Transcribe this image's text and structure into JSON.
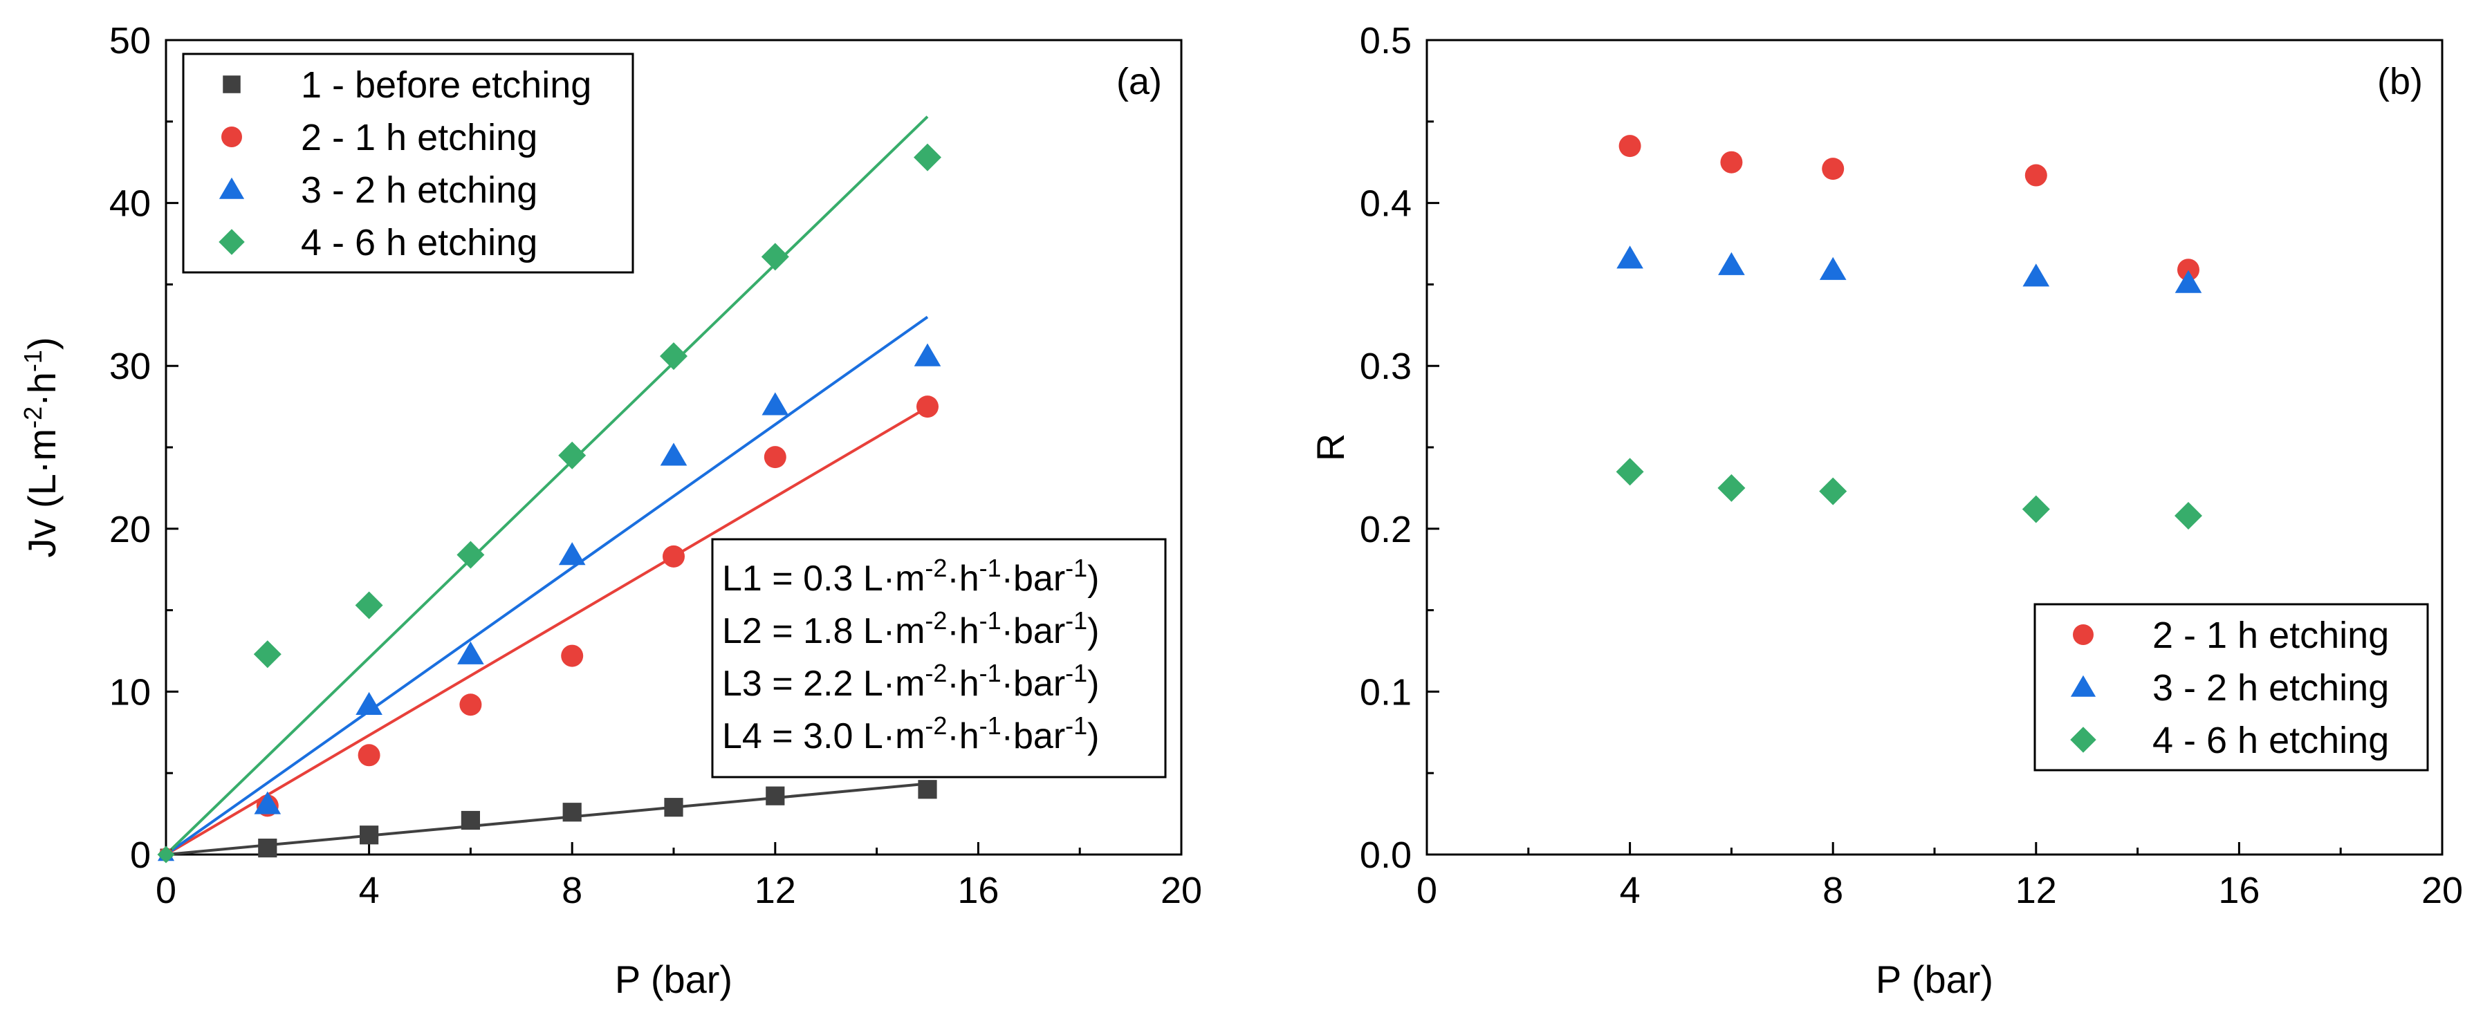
{
  "chart_data": [
    {
      "type": "scatter",
      "panel_label": "(a)",
      "xlabel": "P (bar)",
      "ylabel": "Jv (L·m-2·h-1)",
      "ylabel_parts": [
        "Jv (L·m",
        "-2",
        "·h",
        "-1",
        ")"
      ],
      "xlim": [
        0,
        20
      ],
      "ylim": [
        0,
        50
      ],
      "x_ticks": [
        0,
        4,
        8,
        12,
        16,
        20
      ],
      "y_ticks": [
        0,
        10,
        20,
        30,
        40,
        50
      ],
      "grid": false,
      "legend_position": "top-left",
      "series": [
        {
          "name": "1 - before etching",
          "marker": "square",
          "color": "#404040",
          "x": [
            2,
            4,
            6,
            8,
            10,
            12,
            15
          ],
          "y": [
            0.4,
            1.2,
            2.1,
            2.6,
            2.9,
            3.6,
            4.0
          ],
          "fit_slope": 0.29
        },
        {
          "name": "2 - 1 h etching",
          "marker": "circle",
          "color": "#e8403a",
          "x": [
            2,
            4,
            6,
            8,
            10,
            12,
            15
          ],
          "y": [
            3.0,
            6.1,
            9.2,
            12.2,
            18.3,
            24.4,
            27.5
          ],
          "fit_slope": 1.83
        },
        {
          "name": "3 - 2 h etching",
          "marker": "triangle",
          "color": "#1a6fdf",
          "x": [
            2,
            4,
            6,
            8,
            10,
            12,
            15
          ],
          "y": [
            3.1,
            9.2,
            12.3,
            18.4,
            24.5,
            27.6,
            30.6
          ],
          "fit_slope": 2.2
        },
        {
          "name": "4 - 6 h etching",
          "marker": "diamond",
          "color": "#37ad6b",
          "x": [
            2,
            4,
            6,
            8,
            10,
            12,
            15
          ],
          "y": [
            12.3,
            15.3,
            18.4,
            24.5,
            30.6,
            36.7,
            42.8
          ],
          "fit_slope": 3.02
        }
      ],
      "annotations": [
        {
          "parts": [
            "L1 = 0.3 L·m",
            "-2",
            "·h",
            "-1",
            "·bar",
            "-1",
            ")"
          ]
        },
        {
          "parts": [
            "L2 = 1.8 L·m",
            "-2",
            "·h",
            "-1",
            "·bar",
            "-1",
            ")"
          ]
        },
        {
          "parts": [
            "L3 = 2.2 L·m",
            "-2",
            "·h",
            "-1",
            "·bar",
            "-1",
            ")"
          ]
        },
        {
          "parts": [
            "L4 = 3.0 L·m",
            "-2",
            "·h",
            "-1",
            "·bar",
            "-1",
            ")"
          ]
        }
      ]
    },
    {
      "type": "scatter",
      "panel_label": "(b)",
      "xlabel": "P (bar)",
      "ylabel": "R",
      "xlim": [
        0,
        20
      ],
      "ylim": [
        0.0,
        0.5
      ],
      "x_ticks": [
        0,
        4,
        8,
        12,
        16,
        20
      ],
      "y_ticks": [
        "0.0",
        "0.1",
        "0.2",
        "0.3",
        "0.4",
        "0.5"
      ],
      "grid": false,
      "legend_position": "bottom-right",
      "series": [
        {
          "name": "2 - 1 h etching",
          "marker": "circle",
          "color": "#e8403a",
          "x": [
            4,
            6,
            8,
            12,
            15
          ],
          "y": [
            0.435,
            0.425,
            0.421,
            0.417,
            0.359
          ]
        },
        {
          "name": "3 - 2 h etching",
          "marker": "triangle",
          "color": "#1a6fdf",
          "x": [
            4,
            6,
            8,
            12,
            15
          ],
          "y": [
            0.366,
            0.362,
            0.359,
            0.355,
            0.351
          ]
        },
        {
          "name": "4 - 6 h etching",
          "marker": "diamond",
          "color": "#37ad6b",
          "x": [
            4,
            6,
            8,
            12,
            15
          ],
          "y": [
            0.235,
            0.225,
            0.223,
            0.212,
            0.208
          ]
        }
      ]
    }
  ]
}
